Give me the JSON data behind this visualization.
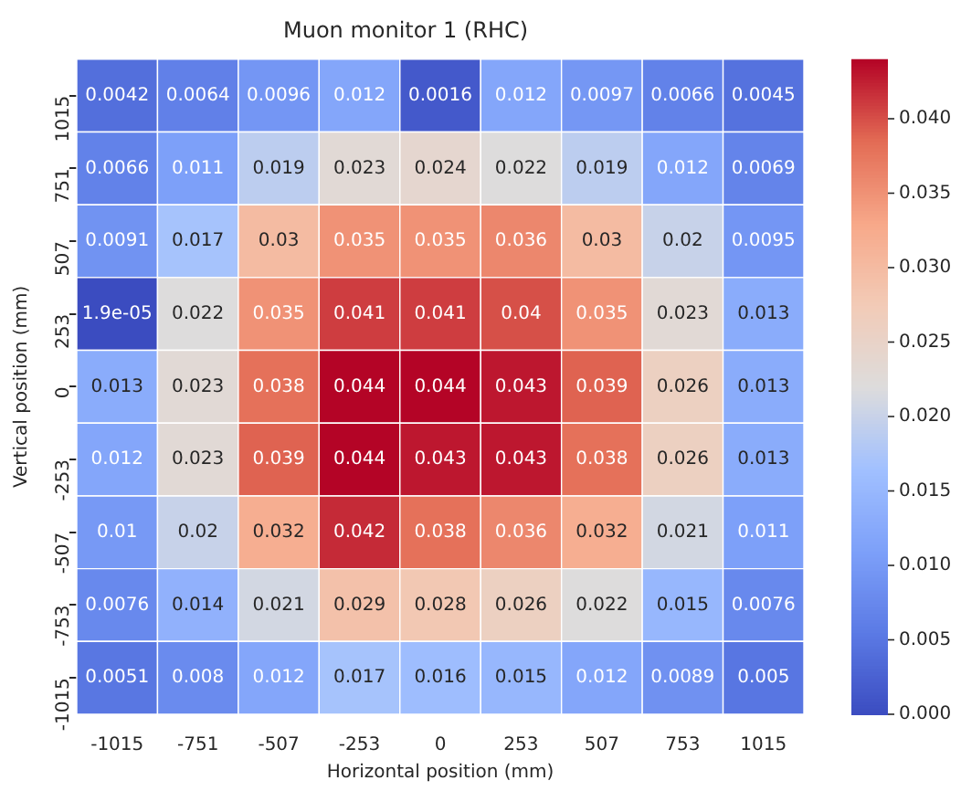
{
  "chart_data": {
    "type": "heatmap",
    "title": "Muon monitor 1 (RHC)",
    "xlabel": "Horizontal position (mm)",
    "ylabel": "Vertical position (mm)",
    "categories": [
      "-1015",
      "-751",
      "-507",
      "-253",
      "0",
      "253",
      "507",
      "753",
      "1015"
    ],
    "y_categories": [
      "1015",
      "751",
      "507",
      "253",
      "0",
      "-253",
      "-507",
      "-753",
      "-1015"
    ],
    "cells": [
      [
        0.0042,
        0.0064,
        0.0096,
        0.012,
        0.0016,
        0.012,
        0.0097,
        0.0066,
        0.0045
      ],
      [
        0.0066,
        0.011,
        0.019,
        0.023,
        0.024,
        0.022,
        0.019,
        0.012,
        0.0069
      ],
      [
        0.0091,
        0.017,
        0.03,
        0.035,
        0.035,
        0.036,
        0.03,
        0.02,
        0.0095
      ],
      [
        1.9e-05,
        0.022,
        0.035,
        0.041,
        0.041,
        0.04,
        0.035,
        0.023,
        0.013
      ],
      [
        0.013,
        0.023,
        0.038,
        0.044,
        0.044,
        0.043,
        0.039,
        0.026,
        0.013
      ],
      [
        0.012,
        0.023,
        0.039,
        0.044,
        0.043,
        0.043,
        0.038,
        0.026,
        0.013
      ],
      [
        0.01,
        0.02,
        0.032,
        0.042,
        0.038,
        0.036,
        0.032,
        0.021,
        0.011
      ],
      [
        0.0076,
        0.014,
        0.021,
        0.029,
        0.028,
        0.026,
        0.022,
        0.015,
        0.0076
      ],
      [
        0.0051,
        0.008,
        0.012,
        0.017,
        0.016,
        0.015,
        0.012,
        0.0089,
        0.005
      ]
    ],
    "cell_labels": [
      [
        "0.0042",
        "0.0064",
        "0.0096",
        "0.012",
        "0.0016",
        "0.012",
        "0.0097",
        "0.0066",
        "0.0045"
      ],
      [
        "0.0066",
        "0.011",
        "0.019",
        "0.023",
        "0.024",
        "0.022",
        "0.019",
        "0.012",
        "0.0069"
      ],
      [
        "0.0091",
        "0.017",
        "0.03",
        "0.035",
        "0.035",
        "0.036",
        "0.03",
        "0.02",
        "0.0095"
      ],
      [
        "1.9e-05",
        "0.022",
        "0.035",
        "0.041",
        "0.041",
        "0.04",
        "0.035",
        "0.023",
        "0.013"
      ],
      [
        "0.013",
        "0.023",
        "0.038",
        "0.044",
        "0.044",
        "0.043",
        "0.039",
        "0.026",
        "0.013"
      ],
      [
        "0.012",
        "0.023",
        "0.039",
        "0.044",
        "0.043",
        "0.043",
        "0.038",
        "0.026",
        "0.013"
      ],
      [
        "0.01",
        "0.02",
        "0.032",
        "0.042",
        "0.038",
        "0.036",
        "0.032",
        "0.021",
        "0.011"
      ],
      [
        "0.0076",
        "0.014",
        "0.021",
        "0.029",
        "0.028",
        "0.026",
        "0.022",
        "0.015",
        "0.0076"
      ],
      [
        "0.0051",
        "0.008",
        "0.012",
        "0.017",
        "0.016",
        "0.015",
        "0.012",
        "0.0089",
        "0.005"
      ]
    ],
    "clim": [
      0,
      0.044
    ],
    "cticks": [
      {
        "value": 0,
        "label": "0.000"
      },
      {
        "value": 0.005,
        "label": "0.005"
      },
      {
        "value": 0.01,
        "label": "0.010"
      },
      {
        "value": 0.015,
        "label": "0.015"
      },
      {
        "value": 0.02,
        "label": "0.020"
      },
      {
        "value": 0.025,
        "label": "0.025"
      },
      {
        "value": 0.03,
        "label": "0.030"
      },
      {
        "value": 0.035,
        "label": "0.035"
      },
      {
        "value": 0.04,
        "label": "0.040"
      }
    ]
  }
}
